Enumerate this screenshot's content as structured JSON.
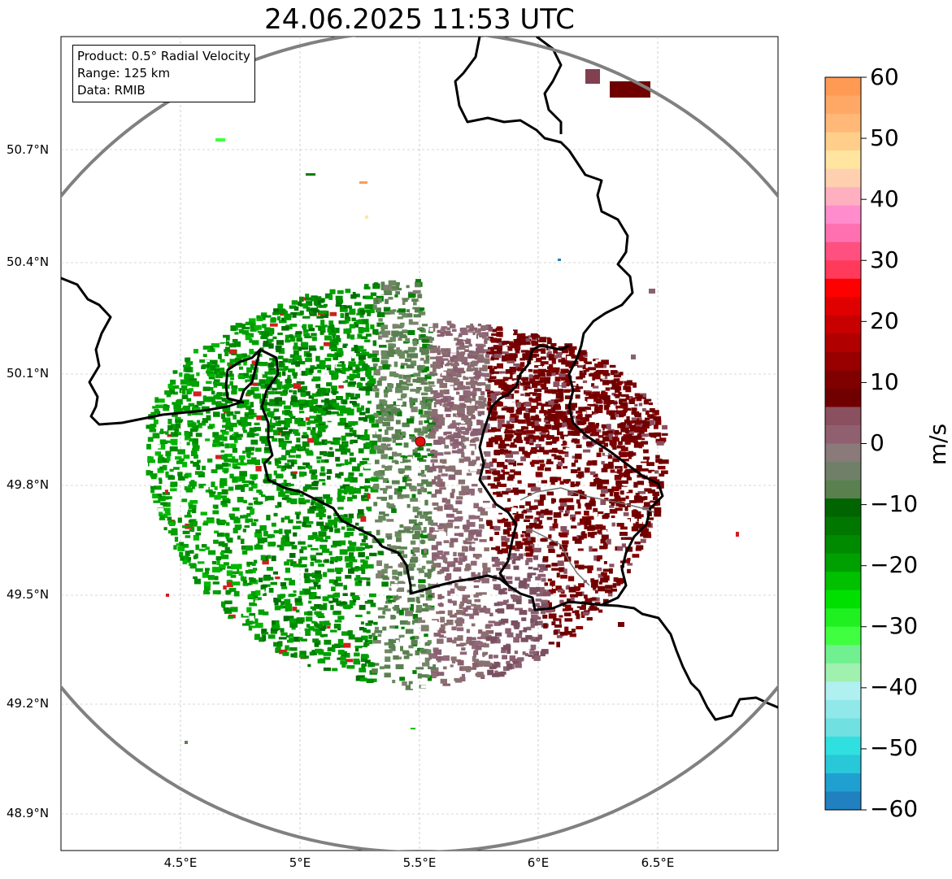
{
  "title": "24.06.2025 11:53 UTC",
  "info": {
    "product": "Product: 0.5° Radial Velocity",
    "range": "Range: 125 km",
    "source": "Data: RMIB"
  },
  "axes": {
    "x_ticks": [
      "4.5°E",
      "5°E",
      "5.5°E",
      "6°E",
      "6.5°E"
    ],
    "y_ticks": [
      "50.7°N",
      "50.4°N",
      "50.1°N",
      "49.8°N",
      "49.5°N",
      "49.2°N",
      "48.9°N"
    ]
  },
  "colorbar": {
    "unit": "m/s",
    "tick_labels": [
      "60",
      "50",
      "40",
      "30",
      "20",
      "10",
      "0",
      "−10",
      "−20",
      "−30",
      "−40",
      "−50",
      "−60"
    ],
    "range": [
      -60,
      60
    ],
    "colors": {
      "p60": "#ff9a55",
      "p50": "#ffce8a",
      "p45": "#ffe5a0",
      "p40": "#ff8ccc",
      "p30": "#ff3a5a",
      "p25": "#ff0000",
      "p15": "#b00000",
      "p10": "#700000",
      "p5": "#8a5060",
      "zero": "#8a7a7a",
      "m5": "#5a8050",
      "m10": "#006400",
      "m20": "#00c000",
      "m30": "#40ff40",
      "m35": "#a0f0b0",
      "m40": "#b0f0f0",
      "m50": "#30e0e0",
      "m60": "#2080c0"
    }
  },
  "radar": {
    "site_marker_color": "#e01010",
    "range_ring_color": "#808080",
    "border_color": "#000000"
  }
}
